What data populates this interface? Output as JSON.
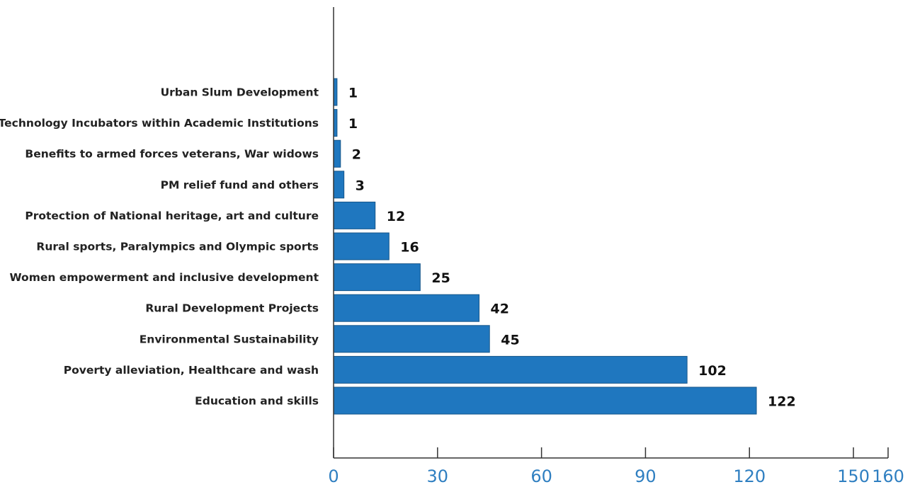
{
  "chart_data": {
    "type": "bar",
    "orientation": "horizontal",
    "title": "",
    "xlabel": "",
    "ylabel": "",
    "categories": [
      "Urban Slum Development",
      "Technology Incubators within Academic Institutions",
      "Benefits to armed forces veterans, War widows",
      "PM relief fund and others",
      "Protection of National heritage, art and culture",
      "Rural sports, Paralympics and Olympic sports",
      "Women empowerment and inclusive development",
      "Rural Development Projects",
      "Environmental Sustainability",
      "Poverty alleviation, Healthcare and wash",
      "Education and skills"
    ],
    "values": [
      1,
      1,
      2,
      3,
      12,
      16,
      25,
      42,
      45,
      102,
      122
    ],
    "value_labels": [
      "1",
      "1",
      "2",
      "3",
      "12",
      "16",
      "25",
      "42",
      "45",
      "102",
      "122"
    ],
    "xlim": [
      0,
      160
    ],
    "xticks": [
      0,
      30,
      60,
      90,
      120,
      150,
      160
    ],
    "xtick_labels": [
      "0",
      "30",
      "60",
      "90",
      "120",
      "150",
      "160"
    ],
    "grid": false,
    "legend": "none",
    "colors": {
      "bar_fill": "#1f77bf",
      "bar_stroke": "#16568a",
      "axis": "#333333",
      "tick_label": "#2f7fc1",
      "category_label": "#222222",
      "value_label": "#111111"
    }
  }
}
